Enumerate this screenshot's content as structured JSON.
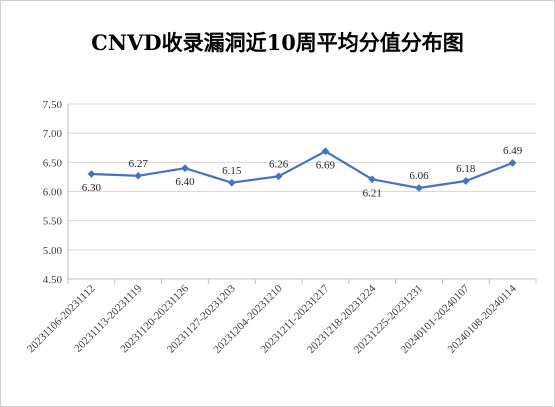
{
  "title": "CNVD收录漏洞近10周平均分值分布图",
  "chart_data": {
    "type": "line",
    "categories": [
      "20231106-20231112",
      "20231113-20231119",
      "20231120-20231126",
      "20231127-20231203",
      "20231204-20231210",
      "20231211-20231217",
      "20231218-20231224",
      "20231225-20231231",
      "20240101-20240107",
      "20240108-20240114"
    ],
    "values": [
      6.3,
      6.27,
      6.4,
      6.15,
      6.26,
      6.69,
      6.21,
      6.06,
      6.18,
      6.49
    ],
    "data_labels": [
      "6.30",
      "6.27",
      "6.40",
      "6.15",
      "6.26",
      "6.69",
      "6.21",
      "6.06",
      "6.18",
      "6.49"
    ],
    "yticks": [
      "4.50",
      "5.00",
      "5.50",
      "6.00",
      "6.50",
      "7.00",
      "7.50"
    ],
    "ylim": [
      4.5,
      7.5
    ],
    "grid": true,
    "legend": "none",
    "line_color": "#4472C4"
  }
}
